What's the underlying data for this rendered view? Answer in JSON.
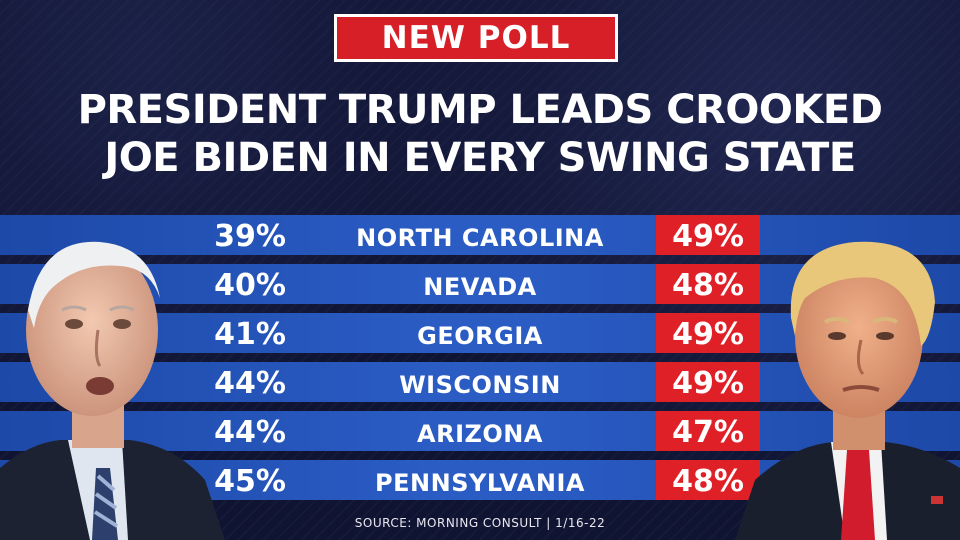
{
  "badge": {
    "label": "NEW POLL"
  },
  "headline": {
    "line1": "PRESIDENT TRUMP LEADS CROOKED",
    "line2": "JOE BIDEN IN EVERY SWING STATE"
  },
  "poll": {
    "rows": [
      {
        "state": "NORTH CAROLINA",
        "biden": "39%",
        "trump": "49%"
      },
      {
        "state": "NEVADA",
        "biden": "40%",
        "trump": "48%"
      },
      {
        "state": "GEORGIA",
        "biden": "41%",
        "trump": "49%"
      },
      {
        "state": "WISCONSIN",
        "biden": "44%",
        "trump": "49%"
      },
      {
        "state": "ARIZONA",
        "biden": "44%",
        "trump": "47%"
      },
      {
        "state": "PENNSYLVANIA",
        "biden": "45%",
        "trump": "48%"
      }
    ]
  },
  "source": "SOURCE: MORNING CONSULT | 1/16-22",
  "colors": {
    "background": "#101433",
    "badge_red": "#d71f28",
    "row_blue": "#2a5cc4",
    "trump_red": "#e02027"
  },
  "images": {
    "left_photo": "biden-portrait",
    "right_photo": "trump-portrait"
  }
}
